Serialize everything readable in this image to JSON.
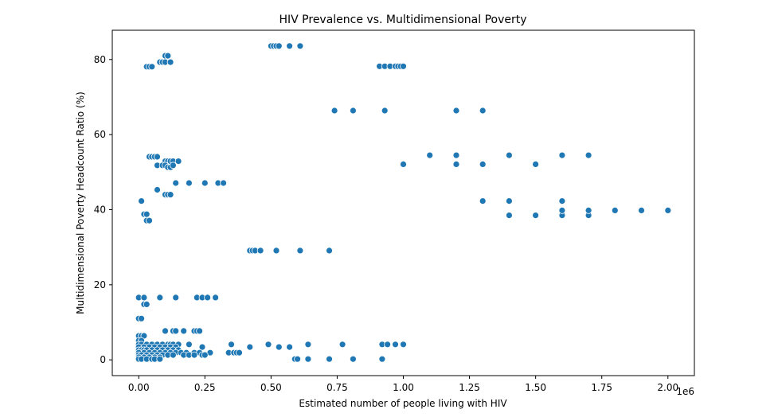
{
  "chart_data": {
    "type": "scatter",
    "title": "HIV Prevalence vs. Multidimensional Poverty",
    "xlabel": "Estimated number of people living with HIV",
    "ylabel": "Multidimensional Poverty Headcount Ratio (%)",
    "x_offset_label": "1e6",
    "xlim": [
      -0.1,
      2.1
    ],
    "ylim": [
      -4.2,
      87.8
    ],
    "xticks": [
      0.0,
      0.25,
      0.5,
      0.75,
      1.0,
      1.25,
      1.5,
      1.75,
      2.0
    ],
    "xtick_labels": [
      "0.00",
      "0.25",
      "0.50",
      "0.75",
      "1.00",
      "1.25",
      "1.50",
      "1.75",
      "2.00"
    ],
    "yticks": [
      0,
      20,
      40,
      60,
      80
    ],
    "ytick_labels": [
      "0",
      "20",
      "40",
      "60",
      "80"
    ],
    "grid": false,
    "marker_color": "#1f77b4",
    "series": [
      {
        "points": [
          [
            0.5,
            83.6
          ],
          [
            0.51,
            83.6
          ],
          [
            0.52,
            83.6
          ],
          [
            0.53,
            83.6
          ],
          [
            0.57,
            83.6
          ],
          [
            0.61,
            83.6
          ],
          [
            0.1,
            81.0
          ],
          [
            0.11,
            81.0
          ],
          [
            0.08,
            79.3
          ],
          [
            0.09,
            79.3
          ],
          [
            0.1,
            79.3
          ],
          [
            0.12,
            79.3
          ],
          [
            0.03,
            78.1
          ],
          [
            0.04,
            78.1
          ],
          [
            0.05,
            78.1
          ],
          [
            0.91,
            78.2
          ],
          [
            0.93,
            78.2
          ],
          [
            0.95,
            78.2
          ],
          [
            0.97,
            78.2
          ],
          [
            0.98,
            78.2
          ],
          [
            0.99,
            78.2
          ],
          [
            1.0,
            78.2
          ],
          [
            0.74,
            66.4
          ],
          [
            0.81,
            66.4
          ],
          [
            0.93,
            66.4
          ],
          [
            1.2,
            66.4
          ],
          [
            1.3,
            66.4
          ],
          [
            1.1,
            54.5
          ],
          [
            1.2,
            54.5
          ],
          [
            1.4,
            54.5
          ],
          [
            1.6,
            54.5
          ],
          [
            1.7,
            54.5
          ],
          [
            1.0,
            52.1
          ],
          [
            1.2,
            52.1
          ],
          [
            1.3,
            52.1
          ],
          [
            1.5,
            52.1
          ],
          [
            0.04,
            54.1
          ],
          [
            0.05,
            54.1
          ],
          [
            0.06,
            54.1
          ],
          [
            0.07,
            54.1
          ],
          [
            0.1,
            52.9
          ],
          [
            0.11,
            52.9
          ],
          [
            0.12,
            52.9
          ],
          [
            0.13,
            52.9
          ],
          [
            0.15,
            52.9
          ],
          [
            0.07,
            51.8
          ],
          [
            0.09,
            51.8
          ],
          [
            0.1,
            51.8
          ],
          [
            0.11,
            51.3
          ],
          [
            0.12,
            51.3
          ],
          [
            0.13,
            51.8
          ],
          [
            0.14,
            47.1
          ],
          [
            0.19,
            47.1
          ],
          [
            0.25,
            47.1
          ],
          [
            0.3,
            47.1
          ],
          [
            0.32,
            47.1
          ],
          [
            0.07,
            45.3
          ],
          [
            0.1,
            44.0
          ],
          [
            0.11,
            44.0
          ],
          [
            0.12,
            44.0
          ],
          [
            0.01,
            42.3
          ],
          [
            1.3,
            42.3
          ],
          [
            1.4,
            42.3
          ],
          [
            1.6,
            42.3
          ],
          [
            0.02,
            38.8
          ],
          [
            0.03,
            38.8
          ],
          [
            0.03,
            37.1
          ],
          [
            0.04,
            37.1
          ],
          [
            1.4,
            38.5
          ],
          [
            1.5,
            38.5
          ],
          [
            1.6,
            38.5
          ],
          [
            1.7,
            38.5
          ],
          [
            1.6,
            39.8
          ],
          [
            1.7,
            39.8
          ],
          [
            1.8,
            39.8
          ],
          [
            1.9,
            39.8
          ],
          [
            2.0,
            39.8
          ],
          [
            0.42,
            29.1
          ],
          [
            0.43,
            29.1
          ],
          [
            0.44,
            29.1
          ],
          [
            0.46,
            29.1
          ],
          [
            0.52,
            29.1
          ],
          [
            0.61,
            29.1
          ],
          [
            0.72,
            29.1
          ],
          [
            0.0,
            16.6
          ],
          [
            0.02,
            16.6
          ],
          [
            0.08,
            16.6
          ],
          [
            0.14,
            16.6
          ],
          [
            0.22,
            16.6
          ],
          [
            0.24,
            16.6
          ],
          [
            0.26,
            16.6
          ],
          [
            0.29,
            16.6
          ],
          [
            0.02,
            14.8
          ],
          [
            0.03,
            14.8
          ],
          [
            0.0,
            11.0
          ],
          [
            0.01,
            11.0
          ],
          [
            0.1,
            7.7
          ],
          [
            0.13,
            7.7
          ],
          [
            0.14,
            7.7
          ],
          [
            0.17,
            7.7
          ],
          [
            0.21,
            7.7
          ],
          [
            0.22,
            7.7
          ],
          [
            0.23,
            7.7
          ],
          [
            0.0,
            6.4
          ],
          [
            0.01,
            6.4
          ],
          [
            0.02,
            6.4
          ],
          [
            0.0,
            5.1
          ],
          [
            0.01,
            5.1
          ],
          [
            0.0,
            4.1
          ],
          [
            0.01,
            4.1
          ],
          [
            0.03,
            4.1
          ],
          [
            0.05,
            4.1
          ],
          [
            0.07,
            4.1
          ],
          [
            0.09,
            4.1
          ],
          [
            0.11,
            4.1
          ],
          [
            0.12,
            4.1
          ],
          [
            0.13,
            4.1
          ],
          [
            0.15,
            4.1
          ],
          [
            0.19,
            4.1
          ],
          [
            0.35,
            4.1
          ],
          [
            0.49,
            4.1
          ],
          [
            0.64,
            4.1
          ],
          [
            0.77,
            4.1
          ],
          [
            0.92,
            4.1
          ],
          [
            0.94,
            4.1
          ],
          [
            0.97,
            4.1
          ],
          [
            1.0,
            4.1
          ],
          [
            0.0,
            3.4
          ],
          [
            0.02,
            3.4
          ],
          [
            0.04,
            3.4
          ],
          [
            0.06,
            3.4
          ],
          [
            0.08,
            3.4
          ],
          [
            0.1,
            3.4
          ],
          [
            0.12,
            3.4
          ],
          [
            0.14,
            3.4
          ],
          [
            0.24,
            3.4
          ],
          [
            0.42,
            3.4
          ],
          [
            0.53,
            3.4
          ],
          [
            0.57,
            3.4
          ],
          [
            0.0,
            2.6
          ],
          [
            0.01,
            2.6
          ],
          [
            0.02,
            2.6
          ],
          [
            0.03,
            2.6
          ],
          [
            0.05,
            2.6
          ],
          [
            0.07,
            2.6
          ],
          [
            0.09,
            2.6
          ],
          [
            0.11,
            2.6
          ],
          [
            0.13,
            2.6
          ],
          [
            0.15,
            2.6
          ],
          [
            0.0,
            1.9
          ],
          [
            0.02,
            1.9
          ],
          [
            0.04,
            1.9
          ],
          [
            0.06,
            1.9
          ],
          [
            0.08,
            1.9
          ],
          [
            0.1,
            1.9
          ],
          [
            0.12,
            1.9
          ],
          [
            0.14,
            1.9
          ],
          [
            0.16,
            1.9
          ],
          [
            0.18,
            1.9
          ],
          [
            0.21,
            1.9
          ],
          [
            0.23,
            1.9
          ],
          [
            0.27,
            1.9
          ],
          [
            0.34,
            1.9
          ],
          [
            0.36,
            1.9
          ],
          [
            0.37,
            1.9
          ],
          [
            0.38,
            1.9
          ],
          [
            0.0,
            1.3
          ],
          [
            0.01,
            1.3
          ],
          [
            0.03,
            1.3
          ],
          [
            0.05,
            1.3
          ],
          [
            0.07,
            1.3
          ],
          [
            0.09,
            1.3
          ],
          [
            0.11,
            1.3
          ],
          [
            0.13,
            1.3
          ],
          [
            0.17,
            1.3
          ],
          [
            0.19,
            1.3
          ],
          [
            0.21,
            1.3
          ],
          [
            0.24,
            1.3
          ],
          [
            0.25,
            1.3
          ],
          [
            0.0,
            0.7
          ],
          [
            0.02,
            0.7
          ],
          [
            0.04,
            0.7
          ],
          [
            0.06,
            0.7
          ],
          [
            0.08,
            0.7
          ],
          [
            0.0,
            0.2
          ],
          [
            0.01,
            0.2
          ],
          [
            0.03,
            0.2
          ],
          [
            0.05,
            0.2
          ],
          [
            0.06,
            0.2
          ],
          [
            0.08,
            0.2
          ],
          [
            0.59,
            0.2
          ],
          [
            0.6,
            0.2
          ],
          [
            0.64,
            0.2
          ],
          [
            0.72,
            0.2
          ],
          [
            0.81,
            0.2
          ],
          [
            0.92,
            0.2
          ]
        ]
      }
    ]
  }
}
